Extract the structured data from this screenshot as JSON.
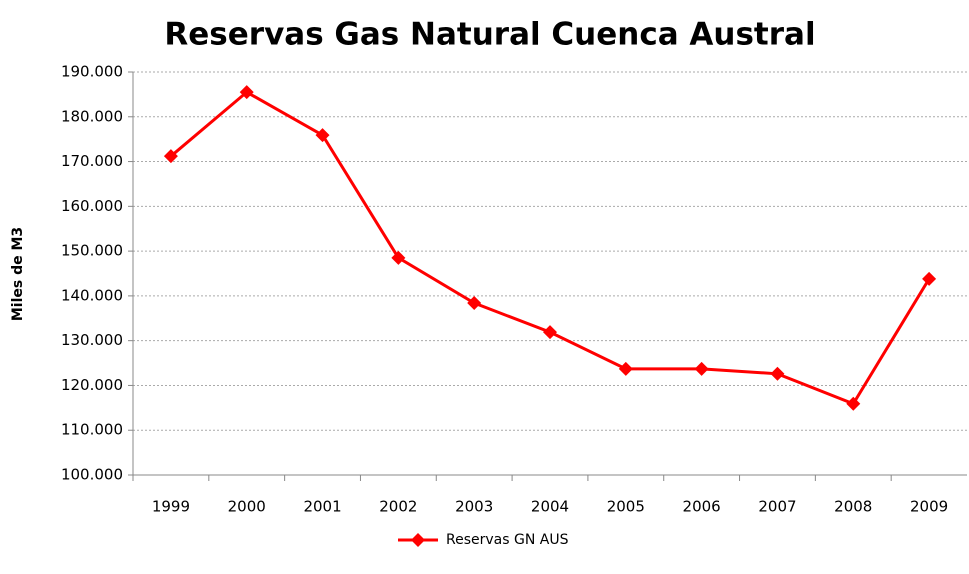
{
  "chart_data": {
    "type": "line",
    "title": "Reservas Gas Natural Cuenca Austral",
    "y_label": "Miles de M3",
    "categories": [
      "1999",
      "2000",
      "2001",
      "2002",
      "2003",
      "2004",
      "2005",
      "2006",
      "2007",
      "2008",
      "2009"
    ],
    "series": [
      {
        "name": "Reservas GN AUS",
        "color": "#ff0000",
        "values": [
          171200,
          185500,
          175900,
          148500,
          138400,
          131900,
          123700,
          123700,
          122600,
          115900,
          143800
        ]
      }
    ],
    "ylim": [
      100000,
      190000
    ],
    "yticks": [
      {
        "value": 100000,
        "label": "100.000"
      },
      {
        "value": 110000,
        "label": "110.000"
      },
      {
        "value": 120000,
        "label": "120.000"
      },
      {
        "value": 130000,
        "label": "130.000"
      },
      {
        "value": 140000,
        "label": "140.000"
      },
      {
        "value": 150000,
        "label": "150.000"
      },
      {
        "value": 160000,
        "label": "160.000"
      },
      {
        "value": 170000,
        "label": "170.000"
      },
      {
        "value": 180000,
        "label": "180.000"
      },
      {
        "value": 190000,
        "label": "190.000"
      }
    ],
    "grid": true,
    "legend": "bottom"
  }
}
